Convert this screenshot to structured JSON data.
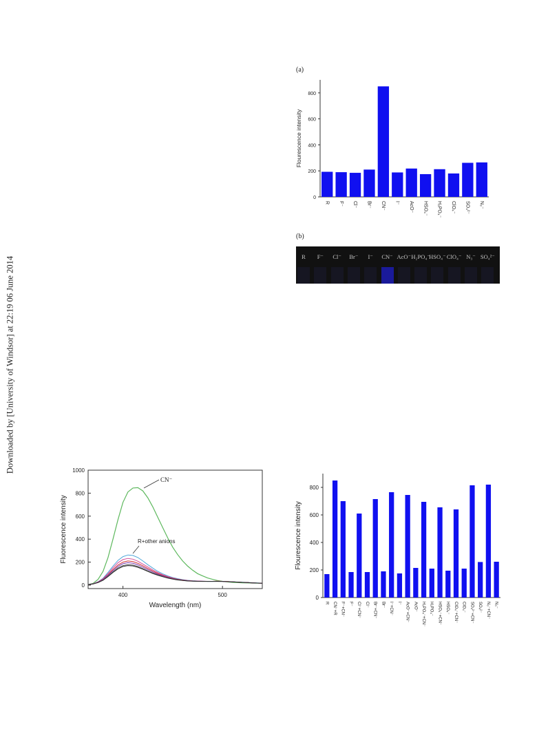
{
  "side_note": "Downloaded by [University of Windsor] at 22:19 06 June 2014",
  "panel_a_label": "(a)",
  "panel_b_label": "(b)",
  "photo_labels": [
    "R",
    "F⁻",
    "Cl⁻",
    "Br⁻",
    "I⁻",
    "CN⁻",
    "AcO⁻",
    "H₂PO₄⁻",
    "HSO₄⁻",
    "ClO₄⁻",
    "N₃⁻",
    "SO₄²⁻"
  ],
  "colors": {
    "bar": "#1010f0",
    "green": "#5db85d",
    "cyan": "#4da6d9",
    "pink": "#d04a9a",
    "red": "#d03030",
    "purple": "#7a3fb0",
    "gray": "#555555",
    "glow": "#1a1a9a"
  },
  "chart_data": [
    {
      "type": "bar",
      "ylabel": "Flourescence intensity",
      "xlabel": "",
      "ylim": [
        0,
        900
      ],
      "yticks": [
        0,
        200,
        400,
        600,
        800
      ],
      "categories": [
        "R",
        "F⁻",
        "Cl⁻",
        "Br⁻",
        "CN⁻",
        "I⁻",
        "AcO⁻",
        "HSO₄⁻",
        "H₂PO₄⁻",
        "ClO₄⁻",
        "SO₄²⁻",
        "N₃⁻"
      ],
      "values": [
        193,
        190,
        185,
        210,
        850,
        188,
        218,
        175,
        213,
        180,
        262,
        265
      ]
    },
    {
      "type": "line",
      "xlabel": "Wavelength (nm)",
      "ylabel": "Fluorescence intensity",
      "xlim": [
        365,
        540
      ],
      "ylim": [
        -30,
        1000
      ],
      "xticks": [
        400,
        500
      ],
      "yticks": [
        0,
        200,
        400,
        600,
        800,
        1000
      ],
      "annotations": [
        "CN⁻",
        "R+other anions"
      ],
      "x": [
        365,
        370,
        375,
        380,
        385,
        390,
        395,
        400,
        405,
        410,
        415,
        420,
        425,
        430,
        435,
        440,
        445,
        450,
        455,
        460,
        465,
        470,
        475,
        480,
        485,
        490,
        495,
        500,
        505,
        510,
        515,
        520,
        525,
        530,
        535,
        540
      ],
      "series": [
        {
          "values": [
            5,
            15,
            50,
            120,
            240,
            400,
            570,
            720,
            810,
            845,
            848,
            820,
            760,
            680,
            590,
            500,
            410,
            330,
            265,
            210,
            165,
            130,
            100,
            80,
            62,
            50,
            40,
            33,
            28,
            24,
            22,
            20,
            19,
            18,
            17,
            16
          ]
        },
        {
          "values": [
            5,
            12,
            30,
            60,
            110,
            165,
            215,
            248,
            262,
            258,
            240,
            210,
            178,
            148,
            120,
            98,
            80,
            66,
            56,
            48,
            42,
            38,
            36,
            34,
            32,
            32,
            33,
            33,
            31,
            29,
            27,
            25,
            23,
            21,
            19,
            17
          ]
        },
        {
          "values": [
            5,
            12,
            28,
            55,
            100,
            150,
            195,
            222,
            232,
            226,
            208,
            183,
            158,
            132,
            110,
            90,
            74,
            62,
            52,
            45,
            40,
            37,
            35,
            34,
            33,
            33,
            34,
            33,
            31,
            29,
            26,
            24,
            22,
            20,
            18,
            16
          ]
        },
        {
          "values": [
            5,
            11,
            26,
            50,
            90,
            135,
            175,
            200,
            210,
            205,
            190,
            168,
            145,
            122,
            102,
            85,
            70,
            59,
            50,
            44,
            39,
            36,
            34,
            33,
            33,
            33,
            34,
            33,
            31,
            28,
            26,
            24,
            22,
            20,
            18,
            16
          ]
        },
        {
          "values": [
            5,
            11,
            25,
            48,
            85,
            125,
            163,
            186,
            195,
            190,
            176,
            156,
            134,
            113,
            95,
            80,
            66,
            56,
            48,
            42,
            38,
            35,
            34,
            33,
            33,
            33,
            33,
            32,
            30,
            28,
            26,
            24,
            22,
            20,
            18,
            16
          ]
        },
        {
          "values": [
            5,
            10,
            23,
            44,
            78,
            115,
            150,
            170,
            178,
            174,
            162,
            144,
            124,
            105,
            89,
            75,
            63,
            54,
            47,
            41,
            37,
            35,
            33,
            33,
            33,
            33,
            33,
            32,
            30,
            28,
            26,
            24,
            22,
            20,
            18,
            16
          ]
        },
        {
          "values": [
            5,
            10,
            22,
            42,
            74,
            110,
            142,
            162,
            170,
            167,
            155,
            138,
            119,
            101,
            86,
            73,
            61,
            52,
            45,
            40,
            36,
            34,
            33,
            32,
            32,
            32,
            33,
            32,
            30,
            28,
            26,
            24,
            22,
            20,
            18,
            16
          ]
        }
      ]
    },
    {
      "type": "bar",
      "ylabel": "Flourescence intensity",
      "xlabel": "",
      "ylim": [
        0,
        900
      ],
      "yticks": [
        0,
        200,
        400,
        600,
        800
      ],
      "categories": [
        "R",
        "CN⁻+R",
        "F⁻+CN⁻",
        "F⁻",
        "Cl⁻+CN⁻",
        "Cl⁻",
        "Br⁻+CN⁻",
        "Br⁻",
        "I⁻+CN⁻",
        "I⁻",
        "AcO⁻+CN⁻",
        "AcO⁻",
        "H₂PO₄⁻+CN⁻",
        "H₂PO₄⁻",
        "HSO₄⁻+CN⁻",
        "HSO₄⁻",
        "ClO₄⁻+CN⁻",
        "ClO₄⁻",
        "SO₄²⁻+CN⁻",
        "SO₄²⁻",
        "N₃⁻+CN⁻",
        "N₃⁻"
      ],
      "values": [
        170,
        850,
        700,
        185,
        610,
        185,
        715,
        190,
        765,
        175,
        745,
        215,
        695,
        210,
        655,
        195,
        640,
        210,
        815,
        258,
        820,
        260
      ]
    }
  ]
}
